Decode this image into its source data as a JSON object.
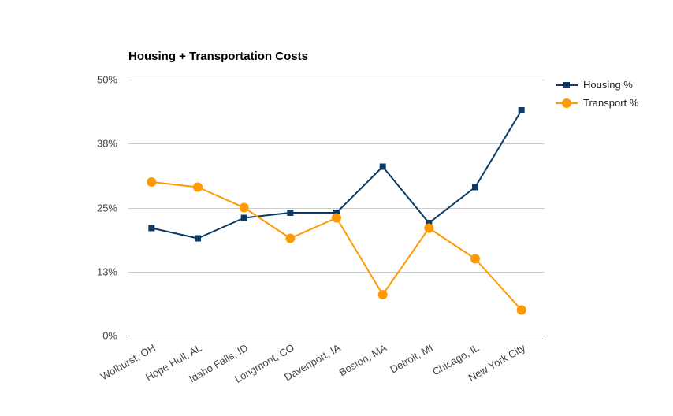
{
  "chart_data": {
    "type": "line",
    "title": "Housing + Transportation Costs",
    "xlabel": "",
    "ylabel": "",
    "categories": [
      "Wolhurst, OH",
      "Hope Hull, AL",
      "Idaho Falls, ID",
      "Longmont, CO",
      "Davenport, IA",
      "Boston, MA",
      "Detroit, MI",
      "Chicago, IL",
      "New York City"
    ],
    "ylim": [
      0,
      50
    ],
    "yticks": [
      0,
      12.5,
      25,
      37.5,
      50
    ],
    "ytick_labels": [
      "0%",
      "13%",
      "25%",
      "38%",
      "50%"
    ],
    "grid": true,
    "legend_position": "right",
    "series": [
      {
        "name": "Housing %",
        "color": "#0b3a66",
        "marker": "square",
        "values": [
          21,
          19,
          23,
          24,
          24,
          33,
          22,
          29,
          44
        ]
      },
      {
        "name": "Transport %",
        "color": "#ff9900",
        "marker": "circle",
        "values": [
          30,
          29,
          25,
          19,
          23,
          8,
          21,
          15,
          5
        ]
      }
    ]
  }
}
